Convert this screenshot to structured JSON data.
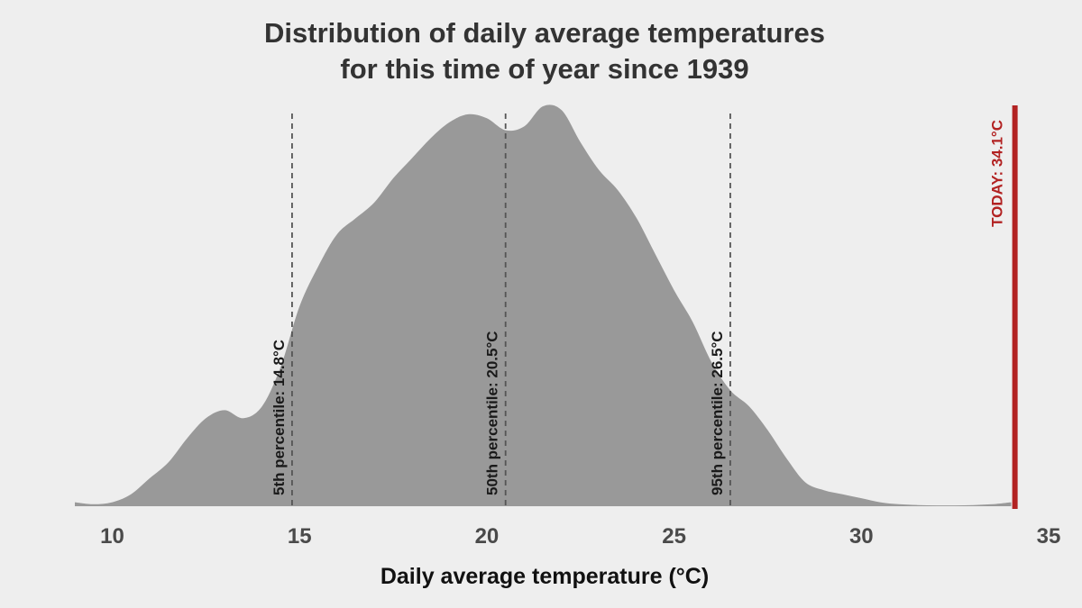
{
  "chart_data": {
    "type": "area",
    "title_lines": [
      "Distribution of daily average temperatures",
      "for this time of year since 1939"
    ],
    "xlabel": "Daily average temperature (°C)",
    "ylabel": "",
    "xlim": [
      9,
      35
    ],
    "ylim": [
      0,
      1
    ],
    "x_ticks": [
      "10",
      "15",
      "20",
      "25",
      "30",
      "35"
    ],
    "density_series": {
      "name": "density",
      "x": [
        9.0,
        9.5,
        10.0,
        10.5,
        11.0,
        11.5,
        12.0,
        12.5,
        13.0,
        13.5,
        14.0,
        14.5,
        15.0,
        15.5,
        16.0,
        16.5,
        17.0,
        17.5,
        18.0,
        18.5,
        19.0,
        19.5,
        20.0,
        20.5,
        21.0,
        21.5,
        22.0,
        22.5,
        23.0,
        23.5,
        24.0,
        24.5,
        25.0,
        25.5,
        26.0,
        26.5,
        27.0,
        27.5,
        28.0,
        28.5,
        29.0,
        29.5,
        30.0,
        30.5,
        31.0,
        31.5,
        32.0,
        32.5,
        33.0,
        33.5,
        34.0
      ],
      "y": [
        0.01,
        0.005,
        0.01,
        0.03,
        0.07,
        0.11,
        0.17,
        0.22,
        0.24,
        0.22,
        0.25,
        0.35,
        0.5,
        0.6,
        0.68,
        0.72,
        0.76,
        0.82,
        0.87,
        0.92,
        0.96,
        0.98,
        0.97,
        0.94,
        0.95,
        1.0,
        0.99,
        0.91,
        0.84,
        0.79,
        0.72,
        0.63,
        0.54,
        0.46,
        0.36,
        0.29,
        0.25,
        0.19,
        0.12,
        0.06,
        0.04,
        0.03,
        0.02,
        0.01,
        0.005,
        0.003,
        0.002,
        0.002,
        0.003,
        0.005,
        0.01
      ],
      "color": "#999999"
    },
    "percentiles": [
      {
        "value": 14.8,
        "label": "5th percentile:  14.8°C"
      },
      {
        "value": 20.5,
        "label": "50th percentile:  20.5°C"
      },
      {
        "value": 26.5,
        "label": "95th percentile:  26.5°C"
      }
    ],
    "today": {
      "value": 34.1,
      "label": "TODAY:  34.1°C",
      "color": "#b22222"
    },
    "grid": false,
    "legend": "none"
  }
}
